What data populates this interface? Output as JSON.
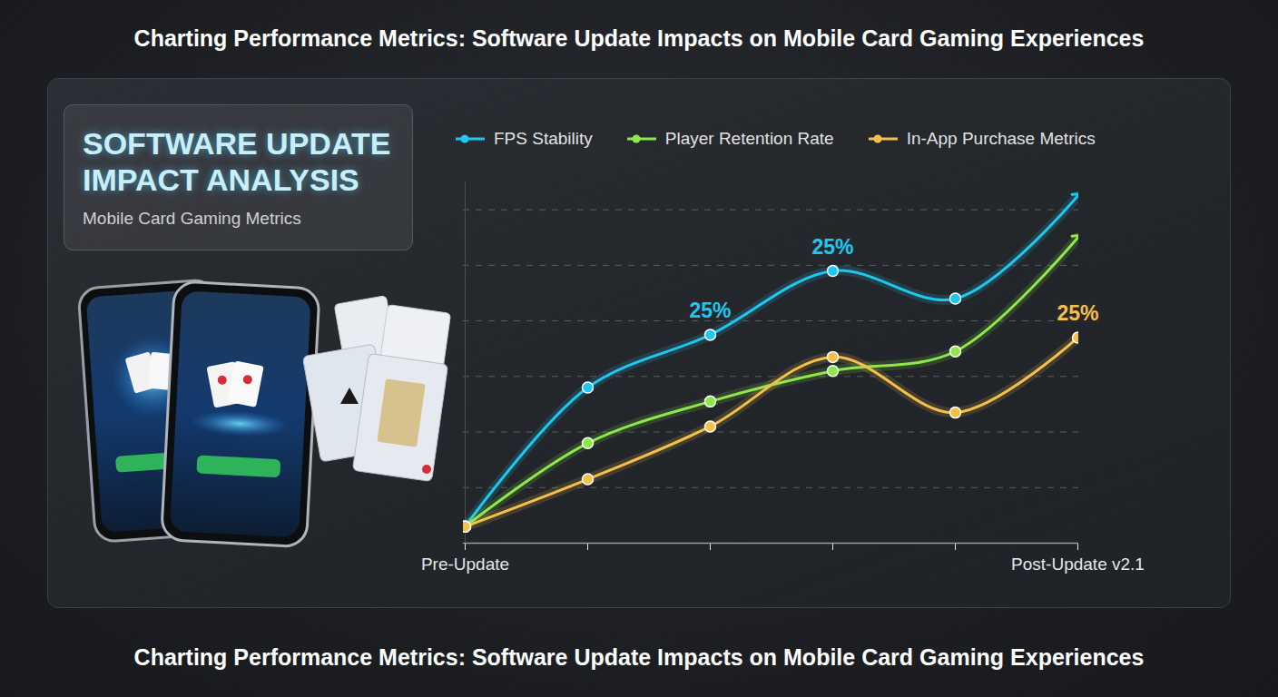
{
  "chart_data": {
    "type": "line",
    "title": "Charting Performance Metrics: Software Update Impacts on Mobile Card Gaming Experiences",
    "caption": "Charting Performance Metrics: Software Update Impacts on Mobile Card Gaming Experiences",
    "panel": {
      "title": "SOFTWARE UPDATE IMPACT ANALYSIS",
      "subtitle": "Mobile Card Gaming Metrics"
    },
    "categories": [
      "Pre-Update",
      null,
      null,
      null,
      null,
      "Post-Update v2.1"
    ],
    "series": [
      {
        "name": "FPS Stability",
        "color": "#1ec8f0",
        "marker": "circle",
        "values": [
          3,
          28,
          37.5,
          49,
          44,
          62.5
        ]
      },
      {
        "name": "Player Retention Rate",
        "color": "#8ee84a",
        "marker": "circle",
        "values": [
          3,
          18,
          25.5,
          31,
          34.5,
          55
        ]
      },
      {
        "name": "In-App Purchase Metrics",
        "color": "#f5c04a",
        "marker": "circle",
        "values": [
          3,
          11.5,
          21,
          33.5,
          23.5,
          37
        ]
      }
    ],
    "annotations": [
      {
        "text": "25%",
        "series": "FPS Stability",
        "index": 2
      },
      {
        "text": "25%",
        "series": "FPS Stability",
        "index": 3
      },
      {
        "text": "25%",
        "series": "In-App Purchase Metrics",
        "index": 5
      }
    ],
    "ylim": [
      0,
      65
    ],
    "yticks": [
      0,
      10,
      20,
      30,
      40,
      50,
      60
    ],
    "grid": true,
    "legend": "top",
    "tick_labels": "x"
  }
}
